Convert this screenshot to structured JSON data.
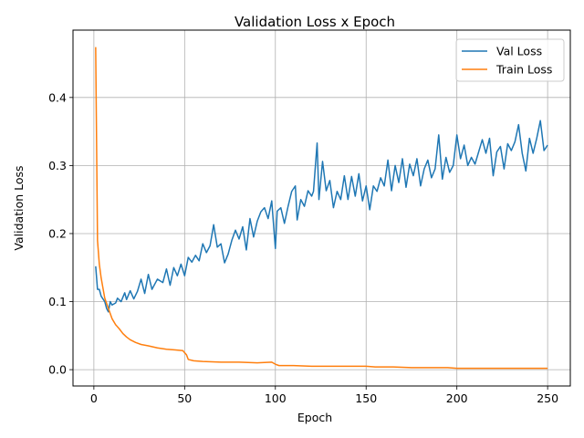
{
  "chart_data": {
    "type": "line",
    "title": "Validation Loss x Epoch",
    "xlabel": "Epoch",
    "ylabel": "Validation Loss",
    "xlim": [
      -11.5,
      262.5
    ],
    "ylim": [
      -0.024,
      0.499
    ],
    "xticks": [
      0,
      50,
      100,
      150,
      200,
      250
    ],
    "yticks": [
      0.0,
      0.1,
      0.2,
      0.3,
      0.4
    ],
    "xtick_labels": [
      "0",
      "50",
      "100",
      "150",
      "200",
      "250"
    ],
    "ytick_labels": [
      "0.0",
      "0.1",
      "0.2",
      "0.3",
      "0.4"
    ],
    "grid": true,
    "legend_position": "top-right",
    "series": [
      {
        "name": "Val Loss",
        "color": "#1f77b4",
        "points": [
          [
            1,
            0.152
          ],
          [
            2,
            0.118
          ],
          [
            3,
            0.118
          ],
          [
            4,
            0.108
          ],
          [
            6,
            0.1
          ],
          [
            7,
            0.09
          ],
          [
            8,
            0.085
          ],
          [
            9,
            0.1
          ],
          [
            10,
            0.095
          ],
          [
            12,
            0.098
          ],
          [
            13,
            0.105
          ],
          [
            15,
            0.1
          ],
          [
            17,
            0.113
          ],
          [
            18,
            0.103
          ],
          [
            20,
            0.116
          ],
          [
            22,
            0.104
          ],
          [
            24,
            0.115
          ],
          [
            26,
            0.133
          ],
          [
            28,
            0.112
          ],
          [
            30,
            0.14
          ],
          [
            32,
            0.118
          ],
          [
            35,
            0.133
          ],
          [
            38,
            0.128
          ],
          [
            40,
            0.148
          ],
          [
            42,
            0.124
          ],
          [
            44,
            0.15
          ],
          [
            46,
            0.138
          ],
          [
            48,
            0.155
          ],
          [
            50,
            0.138
          ],
          [
            52,
            0.165
          ],
          [
            54,
            0.158
          ],
          [
            56,
            0.168
          ],
          [
            58,
            0.16
          ],
          [
            60,
            0.185
          ],
          [
            62,
            0.172
          ],
          [
            64,
            0.182
          ],
          [
            66,
            0.213
          ],
          [
            68,
            0.18
          ],
          [
            70,
            0.185
          ],
          [
            72,
            0.157
          ],
          [
            74,
            0.17
          ],
          [
            76,
            0.19
          ],
          [
            78,
            0.205
          ],
          [
            80,
            0.192
          ],
          [
            82,
            0.21
          ],
          [
            84,
            0.176
          ],
          [
            86,
            0.222
          ],
          [
            88,
            0.195
          ],
          [
            90,
            0.218
          ],
          [
            92,
            0.232
          ],
          [
            94,
            0.238
          ],
          [
            96,
            0.222
          ],
          [
            98,
            0.248
          ],
          [
            100,
            0.178
          ],
          [
            101,
            0.233
          ],
          [
            103,
            0.238
          ],
          [
            105,
            0.215
          ],
          [
            107,
            0.24
          ],
          [
            109,
            0.262
          ],
          [
            111,
            0.27
          ],
          [
            112,
            0.22
          ],
          [
            114,
            0.25
          ],
          [
            116,
            0.24
          ],
          [
            118,
            0.263
          ],
          [
            120,
            0.255
          ],
          [
            121,
            0.262
          ],
          [
            123,
            0.333
          ],
          [
            124,
            0.25
          ],
          [
            126,
            0.306
          ],
          [
            128,
            0.263
          ],
          [
            130,
            0.278
          ],
          [
            132,
            0.238
          ],
          [
            134,
            0.262
          ],
          [
            136,
            0.25
          ],
          [
            138,
            0.285
          ],
          [
            140,
            0.25
          ],
          [
            142,
            0.284
          ],
          [
            144,
            0.255
          ],
          [
            146,
            0.288
          ],
          [
            148,
            0.248
          ],
          [
            150,
            0.27
          ],
          [
            152,
            0.235
          ],
          [
            154,
            0.27
          ],
          [
            156,
            0.262
          ],
          [
            158,
            0.282
          ],
          [
            160,
            0.27
          ],
          [
            162,
            0.308
          ],
          [
            164,
            0.263
          ],
          [
            166,
            0.3
          ],
          [
            168,
            0.275
          ],
          [
            170,
            0.31
          ],
          [
            172,
            0.268
          ],
          [
            174,
            0.302
          ],
          [
            176,
            0.285
          ],
          [
            178,
            0.31
          ],
          [
            180,
            0.27
          ],
          [
            182,
            0.295
          ],
          [
            184,
            0.308
          ],
          [
            186,
            0.282
          ],
          [
            188,
            0.295
          ],
          [
            190,
            0.345
          ],
          [
            192,
            0.28
          ],
          [
            194,
            0.312
          ],
          [
            196,
            0.29
          ],
          [
            198,
            0.3
          ],
          [
            200,
            0.345
          ],
          [
            202,
            0.31
          ],
          [
            204,
            0.33
          ],
          [
            206,
            0.3
          ],
          [
            208,
            0.312
          ],
          [
            210,
            0.302
          ],
          [
            212,
            0.32
          ],
          [
            214,
            0.338
          ],
          [
            216,
            0.318
          ],
          [
            218,
            0.34
          ],
          [
            220,
            0.285
          ],
          [
            222,
            0.32
          ],
          [
            224,
            0.328
          ],
          [
            226,
            0.295
          ],
          [
            228,
            0.332
          ],
          [
            230,
            0.322
          ],
          [
            232,
            0.335
          ],
          [
            234,
            0.36
          ],
          [
            236,
            0.318
          ],
          [
            238,
            0.292
          ],
          [
            240,
            0.34
          ],
          [
            242,
            0.318
          ],
          [
            244,
            0.34
          ],
          [
            246,
            0.366
          ],
          [
            248,
            0.322
          ],
          [
            250,
            0.33
          ]
        ]
      },
      {
        "name": "Train Loss",
        "color": "#ff7f0e",
        "points": [
          [
            1,
            0.474
          ],
          [
            2,
            0.19
          ],
          [
            3,
            0.155
          ],
          [
            4,
            0.135
          ],
          [
            5,
            0.12
          ],
          [
            6,
            0.105
          ],
          [
            8,
            0.09
          ],
          [
            10,
            0.075
          ],
          [
            12,
            0.066
          ],
          [
            14,
            0.06
          ],
          [
            16,
            0.053
          ],
          [
            18,
            0.048
          ],
          [
            20,
            0.044
          ],
          [
            23,
            0.04
          ],
          [
            26,
            0.037
          ],
          [
            30,
            0.035
          ],
          [
            35,
            0.032
          ],
          [
            40,
            0.03
          ],
          [
            45,
            0.029
          ],
          [
            49,
            0.028
          ],
          [
            51,
            0.022
          ],
          [
            52,
            0.015
          ],
          [
            55,
            0.013
          ],
          [
            60,
            0.012
          ],
          [
            70,
            0.011
          ],
          [
            80,
            0.011
          ],
          [
            90,
            0.01
          ],
          [
            98,
            0.011
          ],
          [
            100,
            0.008
          ],
          [
            102,
            0.006
          ],
          [
            110,
            0.006
          ],
          [
            120,
            0.005
          ],
          [
            130,
            0.005
          ],
          [
            140,
            0.005
          ],
          [
            150,
            0.005
          ],
          [
            155,
            0.004
          ],
          [
            165,
            0.004
          ],
          [
            175,
            0.003
          ],
          [
            185,
            0.003
          ],
          [
            195,
            0.003
          ],
          [
            200,
            0.002
          ],
          [
            210,
            0.002
          ],
          [
            220,
            0.002
          ],
          [
            230,
            0.002
          ],
          [
            240,
            0.002
          ],
          [
            250,
            0.002
          ]
        ]
      }
    ]
  }
}
